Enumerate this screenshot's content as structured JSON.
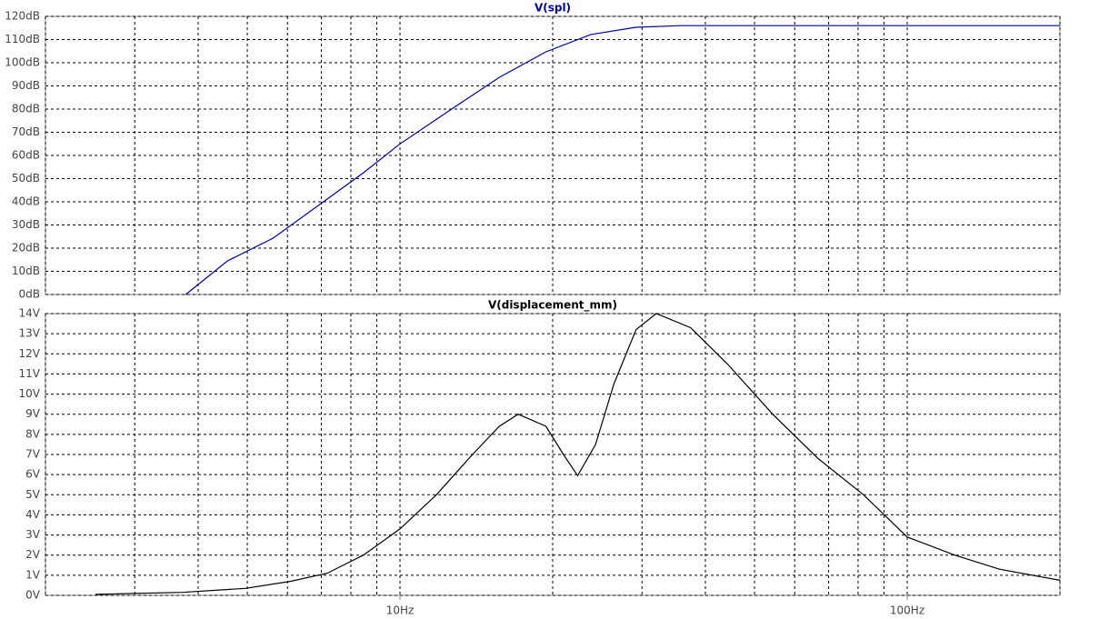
{
  "chart_data": [
    {
      "type": "line",
      "title": "V(spl)",
      "log_x": true,
      "grid": true,
      "xlim": [
        2,
        200
      ],
      "xgrid": [
        2,
        3,
        4,
        5,
        6,
        7,
        8,
        9,
        10,
        20,
        30,
        40,
        50,
        60,
        70,
        80,
        90,
        100,
        200
      ],
      "ylim": [
        0,
        120
      ],
      "yticks": [
        {
          "value": 0,
          "label": "0dB"
        },
        {
          "value": 10,
          "label": "10dB"
        },
        {
          "value": 20,
          "label": "20dB"
        },
        {
          "value": 30,
          "label": "30dB"
        },
        {
          "value": 40,
          "label": "40dB"
        },
        {
          "value": 50,
          "label": "50dB"
        },
        {
          "value": 60,
          "label": "60dB"
        },
        {
          "value": 70,
          "label": "70dB"
        },
        {
          "value": 80,
          "label": "80dB"
        },
        {
          "value": 90,
          "label": "90dB"
        },
        {
          "value": 100,
          "label": "100dB"
        },
        {
          "value": 110,
          "label": "110dB"
        },
        {
          "value": 120,
          "label": "120dB"
        }
      ],
      "series": [
        {
          "name": "V(spl)",
          "color": "#0000a0",
          "x": [
            3.78,
            4.57,
            5.62,
            6.9,
            8.47,
            10,
            12.8,
            15.7,
            19.4,
            23.8,
            29.2,
            35.9,
            200
          ],
          "values": [
            0,
            14.5,
            24.3,
            38.4,
            52.5,
            65,
            80.8,
            93.7,
            104.7,
            112.2,
            115.3,
            116,
            116
          ]
        }
      ]
    },
    {
      "type": "line",
      "title": "V(displacement_mm)",
      "log_x": true,
      "grid": true,
      "xlim": [
        2,
        200
      ],
      "xgrid": [
        2,
        3,
        4,
        5,
        6,
        7,
        8,
        9,
        10,
        20,
        30,
        40,
        50,
        60,
        70,
        80,
        90,
        100,
        200
      ],
      "xticks": [
        {
          "value": 10,
          "label": "10Hz"
        },
        {
          "value": 100,
          "label": "100Hz"
        }
      ],
      "ylim": [
        0,
        14
      ],
      "yticks": [
        {
          "value": 0,
          "label": "0V"
        },
        {
          "value": 1,
          "label": "1V"
        },
        {
          "value": 2,
          "label": "2V"
        },
        {
          "value": 3,
          "label": "3V"
        },
        {
          "value": 4,
          "label": "4V"
        },
        {
          "value": 5,
          "label": "5V"
        },
        {
          "value": 6,
          "label": "6V"
        },
        {
          "value": 7,
          "label": "7V"
        },
        {
          "value": 8,
          "label": "8V"
        },
        {
          "value": 9,
          "label": "9V"
        },
        {
          "value": 10,
          "label": "10V"
        },
        {
          "value": 11,
          "label": "11V"
        },
        {
          "value": 12,
          "label": "12V"
        },
        {
          "value": 13,
          "label": "13V"
        },
        {
          "value": 14,
          "label": "14V"
        }
      ],
      "series": [
        {
          "name": "V(displacement_mm)",
          "color": "#000000",
          "x": [
            2.51,
            3.72,
            4.96,
            6.09,
            7.19,
            8.47,
            10,
            11.8,
            13.9,
            15.7,
            17.1,
            19.4,
            21,
            22.4,
            24.3,
            26.4,
            29.2,
            32,
            37.4,
            44.2,
            54.3,
            66.7,
            82,
            100,
            124,
            152,
            200
          ],
          "values": [
            0.05,
            0.15,
            0.35,
            0.7,
            1.1,
            2,
            3.3,
            5,
            7,
            8.4,
            9,
            8.4,
            7,
            5.95,
            7.5,
            10.5,
            13.2,
            14,
            13.3,
            11.5,
            9,
            6.8,
            5,
            2.9,
            2,
            1.3,
            0.75
          ]
        }
      ]
    }
  ]
}
